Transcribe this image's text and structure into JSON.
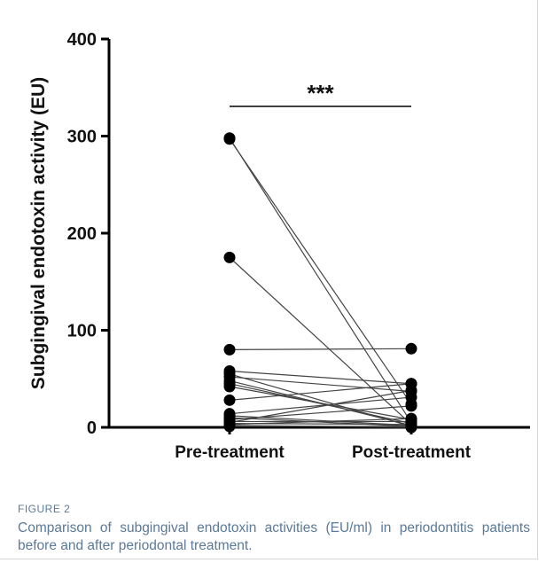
{
  "figure": {
    "label": "FIGURE 2",
    "caption": "Comparison of subgingival endotoxin activities (EU/ml) in periodontitis patients before and after periodontal treatment."
  },
  "chart_data": {
    "type": "scatter",
    "subtype": "paired before-after dot plot",
    "title": "",
    "xlabel": "",
    "ylabel": "Subgingival endotoxin activity (EU)",
    "categories": [
      "Pre-treatment",
      "Post-treatment"
    ],
    "ylim": [
      0,
      400
    ],
    "yticks": [
      0,
      100,
      200,
      300,
      400
    ],
    "significance": {
      "label": "***",
      "between": [
        "Pre-treatment",
        "Post-treatment"
      ]
    },
    "pairs": [
      [
        298,
        5
      ],
      [
        297,
        24
      ],
      [
        175,
        3
      ],
      [
        80,
        81
      ],
      [
        58,
        45
      ],
      [
        55,
        1
      ],
      [
        52,
        37
      ],
      [
        48,
        2
      ],
      [
        45,
        4
      ],
      [
        42,
        8
      ],
      [
        28,
        45
      ],
      [
        14,
        31
      ],
      [
        12,
        2
      ],
      [
        10,
        1
      ],
      [
        8,
        22
      ],
      [
        6,
        6
      ],
      [
        5,
        38
      ],
      [
        4,
        3
      ],
      [
        3,
        9
      ],
      [
        2,
        0
      ],
      [
        1,
        1
      ]
    ],
    "colors": {
      "points": "#000000",
      "lines": "#444444",
      "axis": "#000000"
    }
  }
}
